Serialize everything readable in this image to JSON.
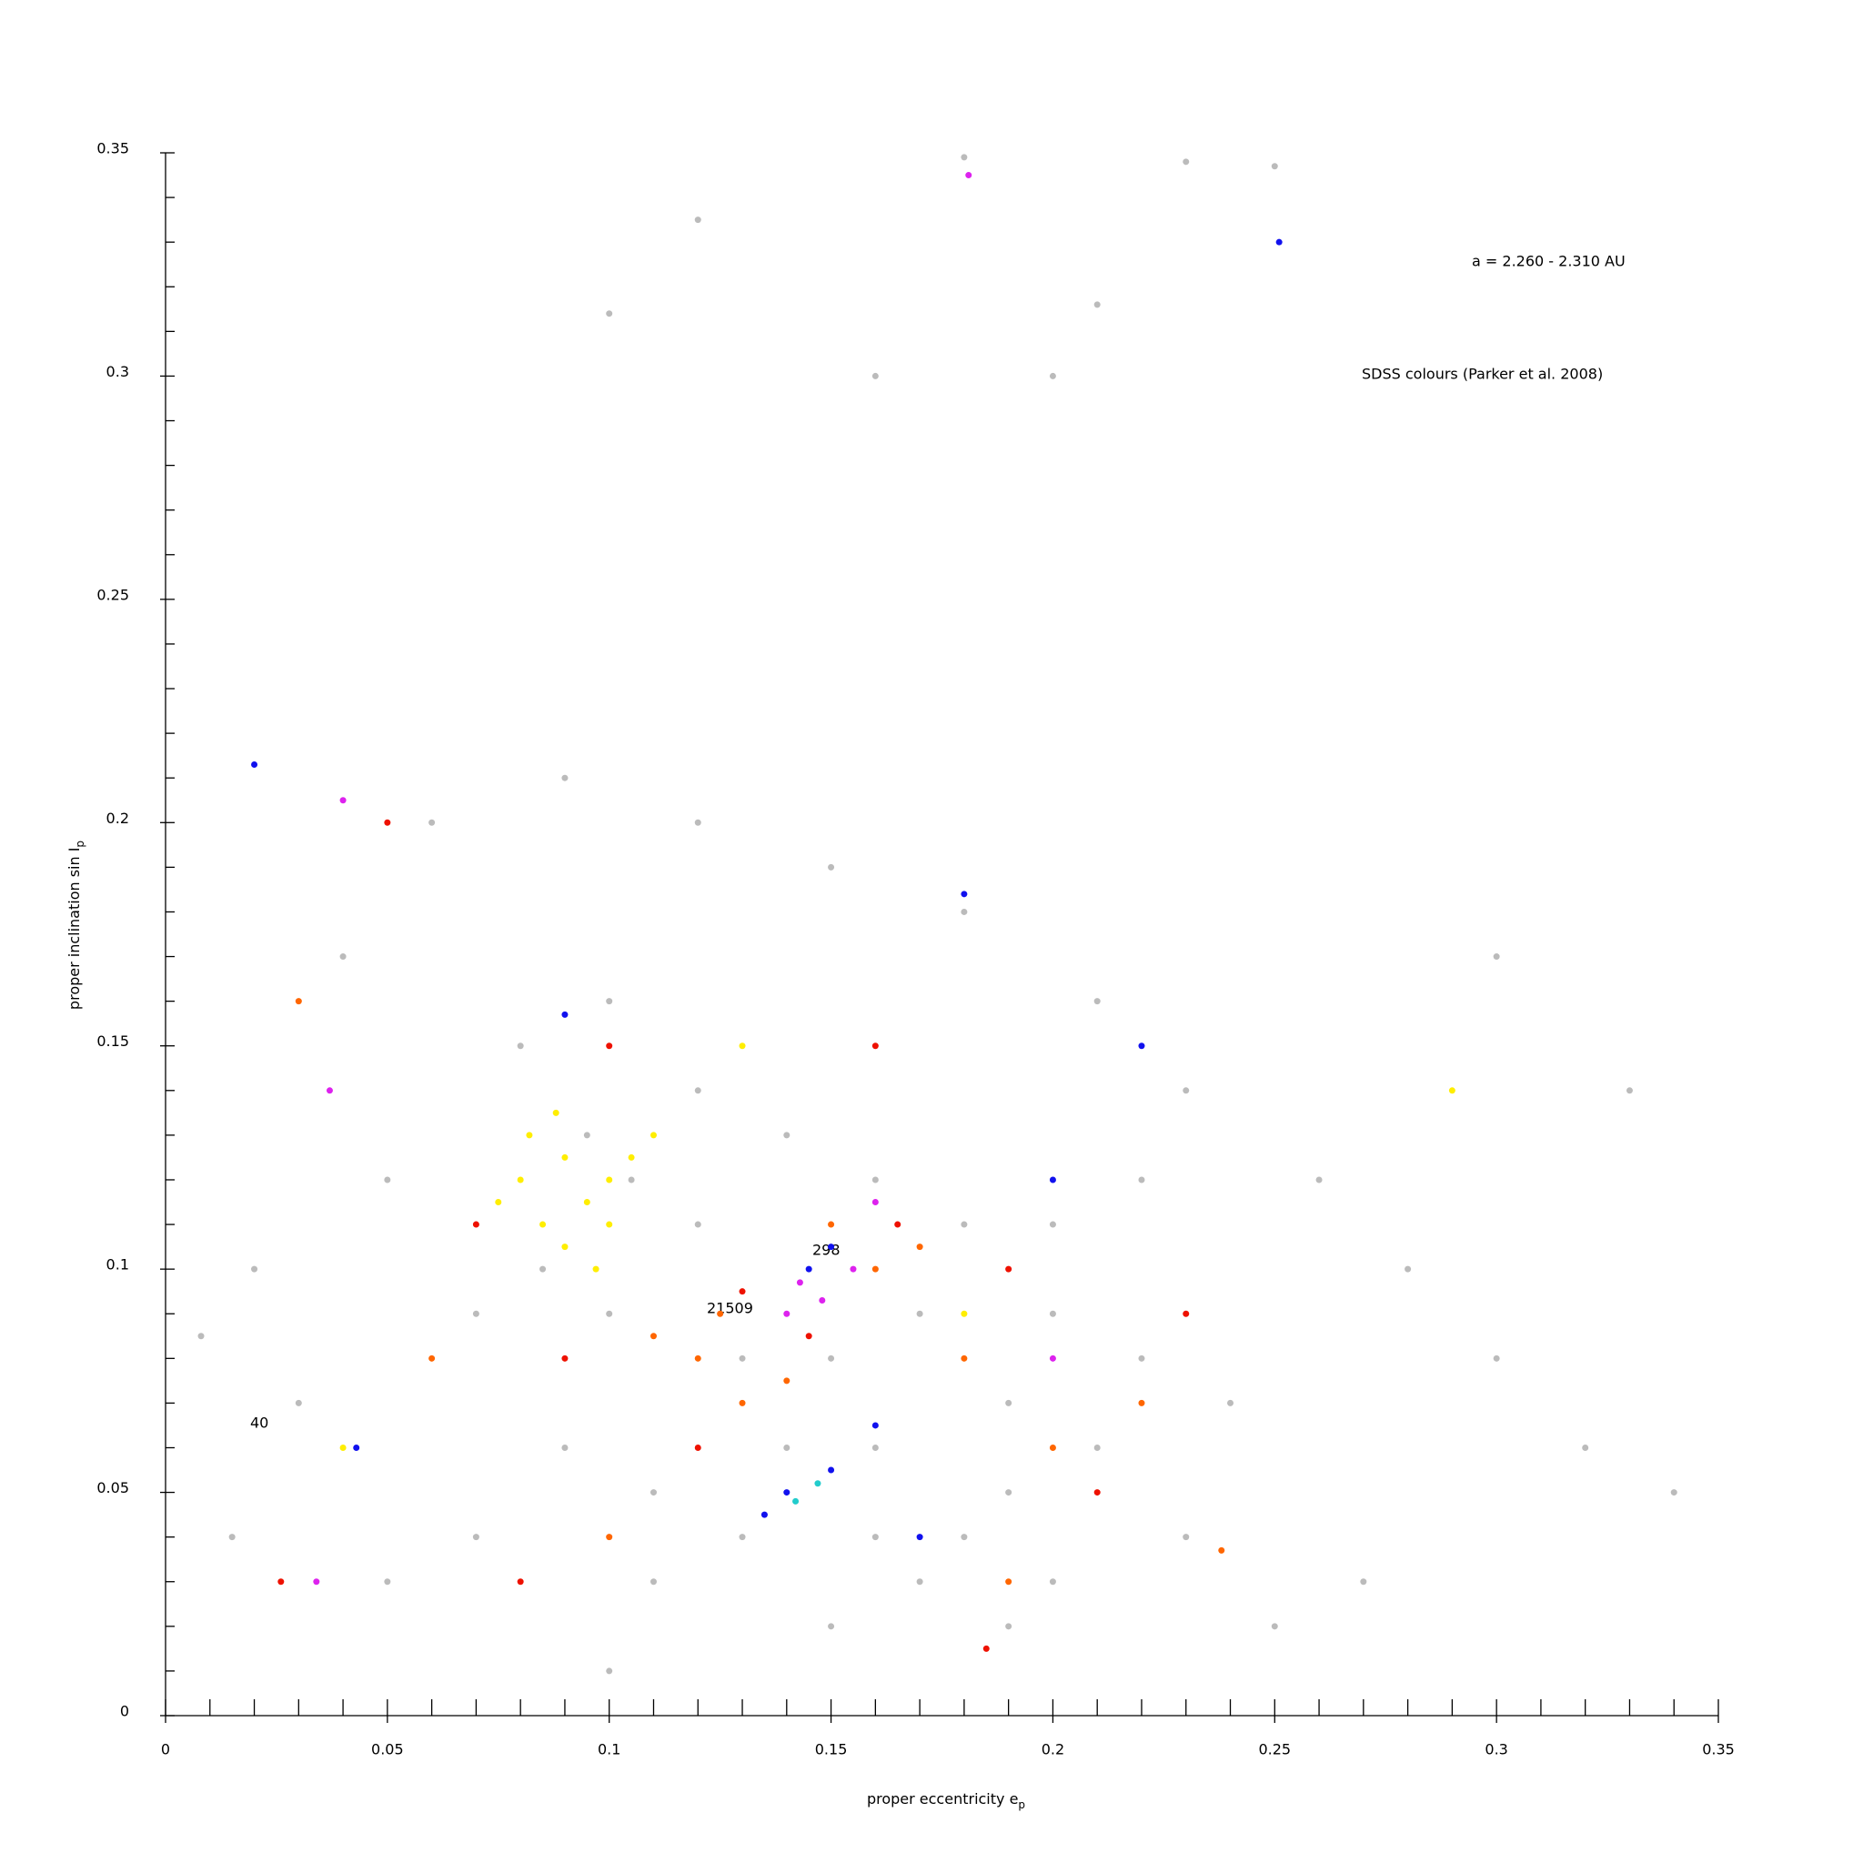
{
  "chart_data": {
    "type": "scatter",
    "x_label": "proper eccentricity e",
    "x_label_sub": "p",
    "y_label": "proper inclination sin I",
    "y_label_sub": "p",
    "annotations": [
      "a = 2.260 - 2.310 AU",
      "SDSS colours (Parker et al. 2008)",
      "298",
      "21509",
      "40"
    ],
    "xlim": [
      0,
      0.35
    ],
    "ylim": [
      0,
      0.35
    ],
    "xticks": [
      0,
      0.05,
      0.1,
      0.15,
      0.2,
      0.25,
      0.3,
      0.35
    ],
    "yticks": [
      0,
      0.05,
      0.1,
      0.15,
      0.2,
      0.25,
      0.3,
      0.35
    ],
    "xminor": [
      0.01,
      0.02,
      0.03,
      0.04,
      0.06,
      0.07,
      0.08,
      0.09,
      0.11,
      0.12,
      0.13,
      0.14,
      0.16,
      0.17,
      0.18,
      0.19,
      0.21,
      0.22,
      0.23,
      0.24,
      0.26,
      0.27,
      0.28,
      0.29,
      0.31,
      0.32,
      0.33,
      0.34
    ],
    "yminor": [
      0.01,
      0.02,
      0.03,
      0.04,
      0.06,
      0.07,
      0.08,
      0.09,
      0.11,
      0.12,
      0.13,
      0.14,
      0.16,
      0.17,
      0.18,
      0.19,
      0.21,
      0.22,
      0.23,
      0.24,
      0.26,
      0.27,
      0.28,
      0.29,
      0.31,
      0.32,
      0.33,
      0.34
    ],
    "series": [
      {
        "color": "#bbbbbb",
        "x": [
          0.05,
          0.07,
          0.08,
          0.1,
          0.12,
          0.14,
          0.16,
          0.18,
          0.2,
          0.22,
          0.24,
          0.19,
          0.18,
          0.17,
          0.2,
          0.16,
          0.15,
          0.13,
          0.11,
          0.09,
          0.07,
          0.05,
          0.03,
          0.02,
          0.04,
          0.06,
          0.09,
          0.12,
          0.15,
          0.18,
          0.21,
          0.23,
          0.26,
          0.28,
          0.3,
          0.32,
          0.34,
          0.27,
          0.25,
          0.1,
          0.13,
          0.15,
          0.17,
          0.19,
          0.21,
          0.2,
          0.22,
          0.12,
          0.1,
          0.085,
          0.095,
          0.105,
          0.21,
          0.18,
          0.25,
          0.23,
          0.16,
          0.12,
          0.1,
          0.2,
          0.3,
          0.33,
          0.008,
          0.015,
          0.14,
          0.16,
          0.19,
          0.23,
          0.11
        ],
        "values": [
          0.12,
          0.09,
          0.15,
          0.16,
          0.14,
          0.13,
          0.12,
          0.11,
          0.09,
          0.08,
          0.07,
          0.05,
          0.04,
          0.03,
          0.03,
          0.06,
          0.02,
          0.04,
          0.05,
          0.06,
          0.04,
          0.03,
          0.07,
          0.1,
          0.17,
          0.2,
          0.21,
          0.2,
          0.19,
          0.18,
          0.16,
          0.14,
          0.12,
          0.1,
          0.08,
          0.06,
          0.05,
          0.03,
          0.02,
          0.01,
          0.08,
          0.08,
          0.09,
          0.07,
          0.06,
          0.11,
          0.12,
          0.11,
          0.09,
          0.1,
          0.13,
          0.12,
          0.316,
          0.349,
          0.347,
          0.348,
          0.3,
          0.335,
          0.314,
          0.3,
          0.17,
          0.14,
          0.085,
          0.04,
          0.06,
          0.04,
          0.02,
          0.04,
          0.03
        ]
      },
      {
        "color": "#ffee00",
        "x": [
          0.08,
          0.085,
          0.09,
          0.095,
          0.1,
          0.09,
          0.082,
          0.1,
          0.105,
          0.075,
          0.088,
          0.097,
          0.11,
          0.04,
          0.29,
          0.18,
          0.13
        ],
        "values": [
          0.12,
          0.11,
          0.125,
          0.115,
          0.12,
          0.105,
          0.13,
          0.11,
          0.125,
          0.115,
          0.135,
          0.1,
          0.13,
          0.06,
          0.14,
          0.09,
          0.15
        ]
      },
      {
        "color": "#ff6600",
        "x": [
          0.12,
          0.13,
          0.125,
          0.14,
          0.11,
          0.16,
          0.17,
          0.18,
          0.2,
          0.22,
          0.06,
          0.03,
          0.238,
          0.1,
          0.19,
          0.15
        ],
        "values": [
          0.08,
          0.07,
          0.09,
          0.075,
          0.085,
          0.1,
          0.105,
          0.08,
          0.06,
          0.07,
          0.08,
          0.16,
          0.037,
          0.04,
          0.03,
          0.11
        ]
      },
      {
        "color": "#ee1100",
        "x": [
          0.12,
          0.13,
          0.145,
          0.165,
          0.19,
          0.21,
          0.09,
          0.07,
          0.05,
          0.1,
          0.23,
          0.185,
          0.08,
          0.16,
          0.026
        ],
        "values": [
          0.06,
          0.095,
          0.085,
          0.11,
          0.1,
          0.05,
          0.08,
          0.11,
          0.2,
          0.15,
          0.09,
          0.015,
          0.03,
          0.15,
          0.03
        ]
      },
      {
        "color": "#1111ee",
        "x": [
          0.14,
          0.135,
          0.15,
          0.145,
          0.15,
          0.16,
          0.17,
          0.09,
          0.18,
          0.251,
          0.043,
          0.2,
          0.22,
          0.02
        ],
        "values": [
          0.05,
          0.045,
          0.055,
          0.1,
          0.105,
          0.065,
          0.04,
          0.157,
          0.184,
          0.33,
          0.06,
          0.12,
          0.15,
          0.213
        ]
      },
      {
        "color": "#dd22ee",
        "x": [
          0.143,
          0.148,
          0.155,
          0.14,
          0.16,
          0.181,
          0.04,
          0.034,
          0.037,
          0.2
        ],
        "values": [
          0.097,
          0.093,
          0.1,
          0.09,
          0.115,
          0.345,
          0.205,
          0.03,
          0.14,
          0.08
        ]
      },
      {
        "color": "#22cccc",
        "x": [
          0.142,
          0.147
        ],
        "values": [
          0.048,
          0.052
        ]
      }
    ]
  }
}
